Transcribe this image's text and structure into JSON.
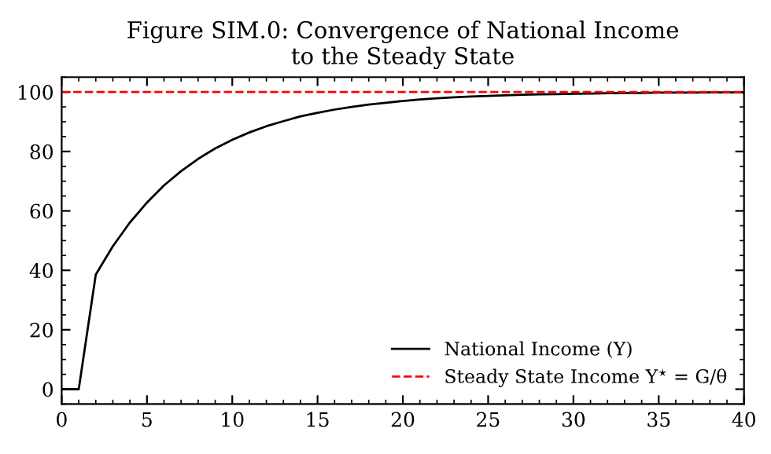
{
  "chart_data": {
    "type": "line",
    "title": "Figure SIM.0: Convergence of National Income\nto the Steady State",
    "x": [
      0,
      1,
      2,
      3,
      4,
      5,
      6,
      7,
      8,
      9,
      10,
      11,
      12,
      13,
      14,
      15,
      16,
      17,
      18,
      19,
      20,
      21,
      22,
      23,
      24,
      25,
      26,
      27,
      28,
      29,
      30,
      31,
      32,
      33,
      34,
      35,
      36,
      37,
      38,
      39,
      40
    ],
    "series": [
      {
        "name": "National Income (Y)",
        "color": "#000000",
        "line_style": "solid",
        "values": [
          0,
          0,
          38.6,
          48.1,
          56.1,
          62.8,
          68.6,
          73.4,
          77.5,
          81.0,
          83.9,
          86.4,
          88.5,
          90.2,
          91.8,
          93.0,
          94.1,
          95.0,
          95.8,
          96.4,
          97.0,
          97.5,
          97.9,
          98.2,
          98.5,
          98.7,
          98.9,
          99.1,
          99.2,
          99.3,
          99.4,
          99.5,
          99.6,
          99.7,
          99.7,
          99.8,
          99.8,
          99.8,
          99.9,
          99.9,
          99.9
        ]
      }
    ],
    "ref_lines": [
      {
        "axis": "y",
        "value": 100,
        "label": "Steady State Income Y$^{⋆}$ = G/θ",
        "color": "#ff0000",
        "line_style": "dashed"
      }
    ],
    "xlim": [
      0,
      40
    ],
    "ylim": [
      -5,
      105
    ],
    "xticks": [
      0,
      {
        "value": 1,
        "label": null
      },
      {
        "value": 2,
        "label": null
      },
      {
        "value": 3,
        "label": null
      },
      {
        "value": 4,
        "label": null
      },
      5,
      {
        "value": 6,
        "label": null
      },
      {
        "value": 7,
        "label": null
      },
      {
        "value": 8,
        "label": null
      },
      {
        "value": 9,
        "label": null
      },
      10,
      {
        "value": 11,
        "label": null
      },
      {
        "value": 12,
        "label": null
      },
      {
        "value": 13,
        "label": null
      },
      {
        "value": 14,
        "label": null
      },
      15,
      {
        "value": 16,
        "label": null
      },
      {
        "value": 17,
        "label": null
      },
      {
        "value": 18,
        "label": null
      },
      {
        "value": 19,
        "label": null
      },
      20,
      {
        "value": 21,
        "label": null
      },
      {
        "value": 22,
        "label": null
      },
      {
        "value": 23,
        "label": null
      },
      {
        "value": 24,
        "label": null
      },
      25,
      {
        "value": 26,
        "label": null
      },
      {
        "value": 27,
        "label": null
      },
      {
        "value": 28,
        "label": null
      },
      {
        "value": 29,
        "label": null
      },
      30,
      {
        "value": 31,
        "label": null
      },
      {
        "value": 32,
        "label": null
      },
      {
        "value": 33,
        "label": null
      },
      {
        "value": 34,
        "label": null
      },
      35,
      {
        "value": 36,
        "label": null
      },
      {
        "value": 37,
        "label": null
      },
      {
        "value": 38,
        "label": null
      },
      {
        "value": 39,
        "label": null
      },
      40
    ],
    "yticks": [
      {
        "value": -5,
        "label": null
      },
      0,
      {
        "value": 5,
        "label": null
      },
      {
        "value": 10,
        "label": null
      },
      {
        "value": 15,
        "label": null
      },
      20,
      {
        "value": 25,
        "label": null
      },
      {
        "value": 30,
        "label": null
      },
      {
        "value": 35,
        "label": null
      },
      40,
      {
        "value": 45,
        "label": null
      },
      {
        "value": 50,
        "label": null
      },
      {
        "value": 55,
        "label": null
      },
      60,
      {
        "value": 65,
        "label": null
      },
      {
        "value": 70,
        "label": null
      },
      {
        "value": 75,
        "label": null
      },
      80,
      {
        "value": 85,
        "label": null
      },
      {
        "value": 90,
        "label": null
      },
      {
        "value": 95,
        "label": null
      },
      100,
      {
        "value": 105,
        "label": null
      }
    ],
    "grid": false,
    "legend": "lower right",
    "marker": "none"
  }
}
